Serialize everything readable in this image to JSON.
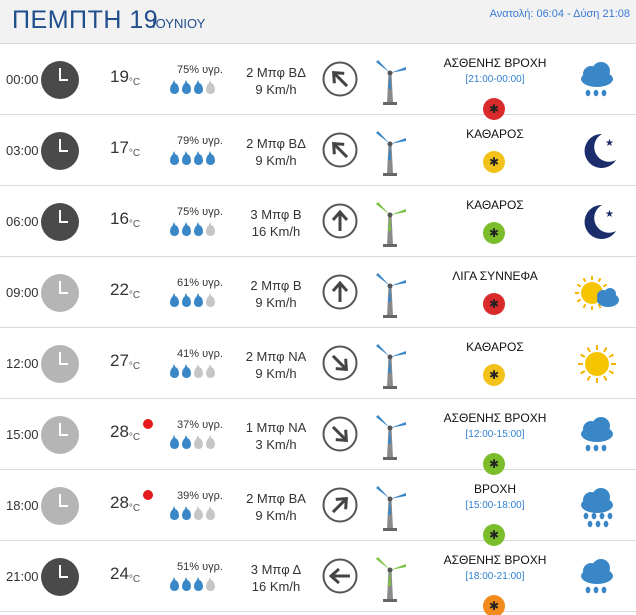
{
  "header": {
    "day": "ΠΕΜΠΤΗ 19",
    "month": "ΙΟΥΝΙΟΥ",
    "sun": "Ανατολή: 06:04 - Δύση 21:08"
  },
  "units": {
    "temp": "°C"
  },
  "rows": [
    {
      "time": "00:00",
      "clock": "dark",
      "temp": "19",
      "hot": false,
      "humidity": "75% υγρ.",
      "drops": 3,
      "wind_force": "2 Μπφ ΒΔ",
      "wind_speed": "9 Km/h",
      "arrow_deg": 135,
      "turbine": "calm",
      "cond": "ΑΣΘΕΝΗΣ ΒΡΟΧΗ",
      "range": "[21:00-00:00]",
      "badge": "red",
      "icon": "rain-light-icon"
    },
    {
      "time": "03:00",
      "clock": "dark",
      "temp": "17",
      "hot": false,
      "humidity": "79% υγρ.",
      "drops": 4,
      "wind_force": "2 Μπφ ΒΔ",
      "wind_speed": "9 Km/h",
      "arrow_deg": 135,
      "turbine": "calm",
      "cond": "ΚΑΘΑΡΟΣ",
      "range": "",
      "badge": "yellow",
      "icon": "moon-icon"
    },
    {
      "time": "06:00",
      "clock": "dark",
      "temp": "16",
      "hot": false,
      "humidity": "75% υγρ.",
      "drops": 3,
      "wind_force": "3 Μπφ Β",
      "wind_speed": "16 Km/h",
      "arrow_deg": 180,
      "turbine": "active",
      "cond": "ΚΑΘΑΡΟΣ",
      "range": "",
      "badge": "green",
      "icon": "moon-icon"
    },
    {
      "time": "09:00",
      "clock": "light",
      "temp": "22",
      "hot": false,
      "humidity": "61% υγρ.",
      "drops": 3,
      "wind_force": "2 Μπφ Β",
      "wind_speed": "9 Km/h",
      "arrow_deg": 180,
      "turbine": "calm",
      "cond": "ΛΙΓΑ ΣΥΝΝΕΦΑ",
      "range": "",
      "badge": "red",
      "icon": "sun-cloud-icon"
    },
    {
      "time": "12:00",
      "clock": "light",
      "temp": "27",
      "hot": false,
      "humidity": "41% υγρ.",
      "drops": 2,
      "wind_force": "2 Μπφ ΝΑ",
      "wind_speed": "9 Km/h",
      "arrow_deg": 315,
      "turbine": "calm",
      "cond": "ΚΑΘΑΡΟΣ",
      "range": "",
      "badge": "yellow",
      "icon": "sun-icon"
    },
    {
      "time": "15:00",
      "clock": "light",
      "temp": "28",
      "hot": true,
      "humidity": "37% υγρ.",
      "drops": 2,
      "wind_force": "1 Μπφ ΝΑ",
      "wind_speed": "3 Km/h",
      "arrow_deg": 315,
      "turbine": "calm",
      "cond": "ΑΣΘΕΝΗΣ ΒΡΟΧΗ",
      "range": "[12:00-15:00]",
      "badge": "green",
      "icon": "rain-light-icon"
    },
    {
      "time": "18:00",
      "clock": "light",
      "temp": "28",
      "hot": true,
      "humidity": "39% υγρ.",
      "drops": 2,
      "wind_force": "2 Μπφ ΒΑ",
      "wind_speed": "9 Km/h",
      "arrow_deg": 225,
      "turbine": "calm",
      "cond": "ΒΡΟΧΗ",
      "range": "[15:00-18:00]",
      "badge": "green",
      "icon": "rain-heavy-icon"
    },
    {
      "time": "21:00",
      "clock": "dark",
      "temp": "24",
      "hot": false,
      "humidity": "51% υγρ.",
      "drops": 3,
      "wind_force": "3 Μπφ Δ",
      "wind_speed": "16 Km/h",
      "arrow_deg": 90,
      "turbine": "active",
      "cond": "ΑΣΘΕΝΗΣ ΒΡΟΧΗ",
      "range": "[18:00-21:00]",
      "badge": "orange",
      "icon": "rain-light-icon"
    }
  ]
}
